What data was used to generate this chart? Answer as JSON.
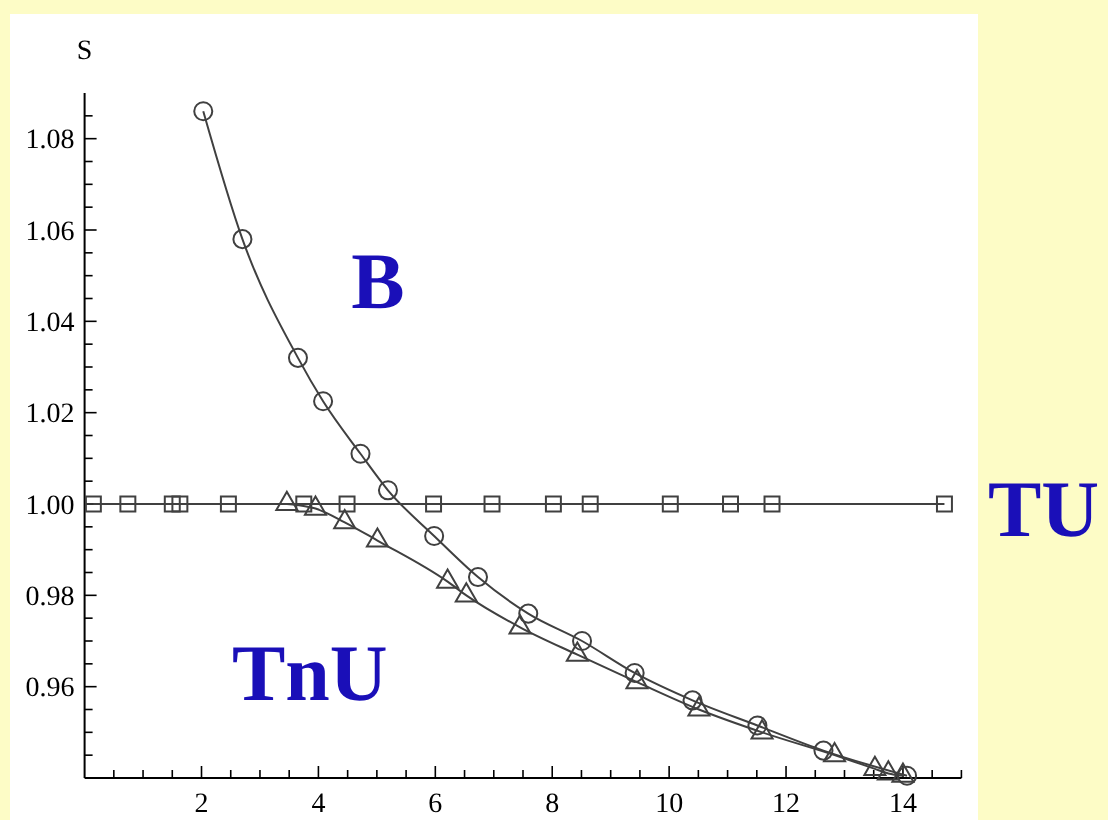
{
  "chart_data": {
    "type": "line",
    "ylabel": "S",
    "xlim": [
      0,
      15
    ],
    "ylim": [
      0.94,
      1.09
    ],
    "xticks": [
      {
        "value": 0.5,
        "label": null
      },
      {
        "value": 1,
        "label": null
      },
      {
        "value": 1.5,
        "label": null
      },
      2,
      {
        "value": 2.5,
        "label": null
      },
      {
        "value": 3,
        "label": null
      },
      {
        "value": 3.5,
        "label": null
      },
      4,
      {
        "value": 4.5,
        "label": null
      },
      {
        "value": 5,
        "label": null
      },
      {
        "value": 5.5,
        "label": null
      },
      6,
      {
        "value": 6.5,
        "label": null
      },
      {
        "value": 7,
        "label": null
      },
      {
        "value": 7.5,
        "label": null
      },
      8,
      {
        "value": 8.5,
        "label": null
      },
      {
        "value": 9,
        "label": null
      },
      {
        "value": 9.5,
        "label": null
      },
      10,
      {
        "value": 10.5,
        "label": null
      },
      {
        "value": 11,
        "label": null
      },
      {
        "value": 11.5,
        "label": null
      },
      12,
      {
        "value": 12.5,
        "label": null
      },
      {
        "value": 13,
        "label": null
      },
      {
        "value": 13.5,
        "label": null
      },
      14,
      {
        "value": 14.5,
        "label": null
      },
      {
        "value": 15,
        "label": null
      }
    ],
    "yticks": [
      {
        "value": 0.945,
        "label": null
      },
      {
        "value": 0.95,
        "label": null
      },
      {
        "value": 0.955,
        "label": null
      },
      0.96,
      {
        "value": 0.965,
        "label": null
      },
      {
        "value": 0.97,
        "label": null
      },
      {
        "value": 0.975,
        "label": null
      },
      0.98,
      {
        "value": 0.985,
        "label": null
      },
      {
        "value": 0.99,
        "label": null
      },
      {
        "value": 0.995,
        "label": null
      },
      {
        "value": 1,
        "label": "1.00"
      },
      {
        "value": 1.005,
        "label": null
      },
      {
        "value": 1.01,
        "label": null
      },
      {
        "value": 1.015,
        "label": null
      },
      1.02,
      {
        "value": 1.025,
        "label": null
      },
      {
        "value": 1.03,
        "label": null
      },
      {
        "value": 1.035,
        "label": null
      },
      1.04,
      {
        "value": 1.045,
        "label": null
      },
      {
        "value": 1.05,
        "label": null
      },
      {
        "value": 1.055,
        "label": null
      },
      1.06,
      {
        "value": 1.065,
        "label": null
      },
      {
        "value": 1.07,
        "label": null
      },
      {
        "value": 1.075,
        "label": null
      },
      1.08,
      {
        "value": 1.085,
        "label": null
      }
    ],
    "legend": false,
    "grid": false,
    "series": [
      {
        "name": "B",
        "color": "#404040",
        "marker": "circle",
        "x": [
          2.03,
          2.7,
          3.65,
          4.08,
          4.72,
          5.19,
          5.98,
          6.73,
          7.59,
          8.51,
          9.41,
          10.4,
          11.51,
          12.64,
          14.07
        ],
        "values": [
          1.086,
          1.058,
          1.032,
          1.0225,
          1.011,
          1.003,
          0.993,
          0.984,
          0.976,
          0.97,
          0.963,
          0.957,
          0.9515,
          0.946,
          0.9405
        ]
      },
      {
        "name": "TnU",
        "color": "#404040",
        "marker": "triangle",
        "x": [
          3.46,
          3.95,
          4.45,
          5.01,
          6.21,
          6.53,
          7.45,
          8.43,
          9.45,
          10.51,
          11.59,
          12.83,
          13.52,
          13.75,
          14.0
        ],
        "values": [
          1.0,
          0.999,
          0.996,
          0.992,
          0.983,
          0.98,
          0.973,
          0.967,
          0.961,
          0.955,
          0.95,
          0.945,
          0.942,
          0.941,
          0.9405
        ]
      },
      {
        "name": "TU",
        "color": "#404040",
        "marker": "square",
        "x": [
          0.15,
          0.74,
          1.5,
          1.63,
          2.46,
          3.75,
          4.49,
          5.97,
          6.97,
          8.02,
          8.65,
          10.02,
          11.05,
          11.76,
          14.71
        ],
        "values": [
          1,
          1,
          1,
          1,
          1,
          1,
          1,
          1,
          1,
          1,
          1,
          1,
          1,
          1,
          1
        ]
      }
    ]
  }
}
